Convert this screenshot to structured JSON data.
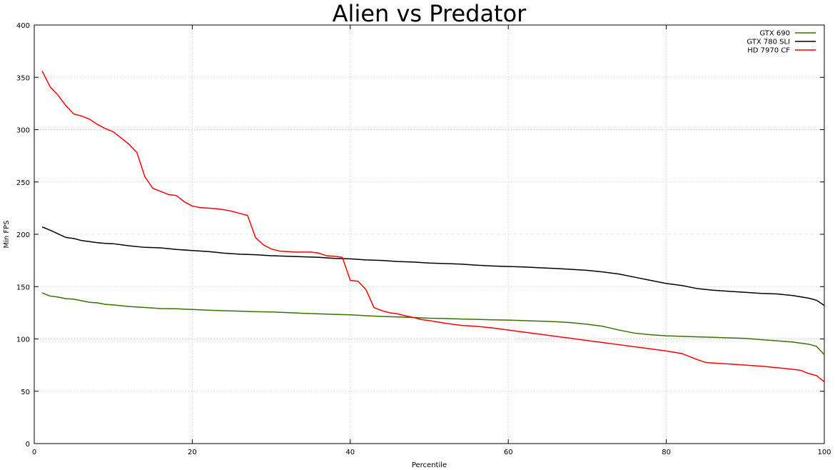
{
  "chart_data": {
    "type": "line",
    "title": "Alien vs Predator",
    "xlabel": "Percentile",
    "ylabel": "Min FPS",
    "xlim": [
      0,
      100
    ],
    "ylim": [
      0,
      400
    ],
    "x_ticks": [
      0,
      20,
      40,
      60,
      80,
      100
    ],
    "y_ticks": [
      0,
      50,
      100,
      150,
      200,
      250,
      300,
      350,
      400
    ],
    "grid": true,
    "legend_position": "top-right",
    "series": [
      {
        "name": "GTX 690",
        "color": "#3a7000",
        "points": [
          [
            1,
            144
          ],
          [
            2,
            141
          ],
          [
            3,
            140
          ],
          [
            4,
            138.5
          ],
          [
            5,
            138
          ],
          [
            6,
            136.5
          ],
          [
            7,
            135
          ],
          [
            8,
            134.5
          ],
          [
            9,
            133
          ],
          [
            10,
            132.5
          ],
          [
            12,
            131
          ],
          [
            14,
            130
          ],
          [
            16,
            129
          ],
          [
            18,
            128.8
          ],
          [
            20,
            128.2
          ],
          [
            22,
            127.5
          ],
          [
            24,
            127
          ],
          [
            26,
            126.5
          ],
          [
            28,
            126
          ],
          [
            30,
            125.8
          ],
          [
            32,
            125.2
          ],
          [
            34,
            124.5
          ],
          [
            36,
            124
          ],
          [
            38,
            123.5
          ],
          [
            40,
            123
          ],
          [
            42,
            122.2
          ],
          [
            44,
            121.5
          ],
          [
            46,
            121
          ],
          [
            48,
            120.5
          ],
          [
            50,
            119.8
          ],
          [
            52,
            119.5
          ],
          [
            54,
            119
          ],
          [
            56,
            118.7
          ],
          [
            58,
            118.3
          ],
          [
            60,
            118
          ],
          [
            62,
            117.5
          ],
          [
            64,
            117
          ],
          [
            66,
            116.5
          ],
          [
            68,
            115.5
          ],
          [
            70,
            114
          ],
          [
            72,
            112
          ],
          [
            74,
            108.5
          ],
          [
            76,
            105.5
          ],
          [
            78,
            104
          ],
          [
            80,
            103
          ],
          [
            82,
            102.5
          ],
          [
            84,
            102
          ],
          [
            86,
            101.5
          ],
          [
            88,
            101
          ],
          [
            90,
            100.5
          ],
          [
            92,
            99.3
          ],
          [
            94,
            98.2
          ],
          [
            96,
            97
          ],
          [
            98,
            95
          ],
          [
            99,
            93
          ],
          [
            100,
            85
          ]
        ]
      },
      {
        "name": "GTX 780 SLI",
        "color": "#000000",
        "points": [
          [
            1,
            207
          ],
          [
            2,
            204
          ],
          [
            3,
            200.5
          ],
          [
            4,
            197
          ],
          [
            5,
            196
          ],
          [
            6,
            194
          ],
          [
            7,
            193
          ],
          [
            8,
            192
          ],
          [
            9,
            191.3
          ],
          [
            10,
            191
          ],
          [
            12,
            189
          ],
          [
            14,
            187.5
          ],
          [
            16,
            187
          ],
          [
            18,
            185.5
          ],
          [
            20,
            184.5
          ],
          [
            22,
            183.5
          ],
          [
            24,
            182
          ],
          [
            26,
            181
          ],
          [
            28,
            180.5
          ],
          [
            30,
            179.5
          ],
          [
            32,
            179
          ],
          [
            34,
            178.5
          ],
          [
            36,
            178
          ],
          [
            38,
            177
          ],
          [
            40,
            176.5
          ],
          [
            42,
            175.5
          ],
          [
            44,
            175
          ],
          [
            46,
            174
          ],
          [
            48,
            173.5
          ],
          [
            50,
            172.5
          ],
          [
            52,
            172
          ],
          [
            54,
            171.5
          ],
          [
            56,
            170.5
          ],
          [
            58,
            169.7
          ],
          [
            60,
            169.2
          ],
          [
            62,
            168.8
          ],
          [
            64,
            168
          ],
          [
            66,
            167.3
          ],
          [
            68,
            166.5
          ],
          [
            70,
            165.5
          ],
          [
            72,
            164
          ],
          [
            74,
            162
          ],
          [
            76,
            159
          ],
          [
            78,
            156
          ],
          [
            80,
            153
          ],
          [
            82,
            151
          ],
          [
            84,
            148
          ],
          [
            86,
            146.5
          ],
          [
            88,
            145.5
          ],
          [
            90,
            144.5
          ],
          [
            92,
            143.5
          ],
          [
            94,
            143
          ],
          [
            96,
            141.5
          ],
          [
            98,
            139
          ],
          [
            99,
            137
          ],
          [
            100,
            132
          ]
        ]
      },
      {
        "name": "HD 7970 CF",
        "color": "#ff0000",
        "points": [
          [
            1,
            356
          ],
          [
            2,
            341
          ],
          [
            3,
            333
          ],
          [
            4,
            323
          ],
          [
            5,
            315
          ],
          [
            6,
            313
          ],
          [
            7,
            310
          ],
          [
            8,
            305
          ],
          [
            9,
            301
          ],
          [
            10,
            298
          ],
          [
            11,
            292
          ],
          [
            12,
            286
          ],
          [
            13,
            278
          ],
          [
            14,
            255
          ],
          [
            15,
            244
          ],
          [
            16,
            241
          ],
          [
            17,
            238
          ],
          [
            18,
            237
          ],
          [
            19,
            231
          ],
          [
            20,
            227
          ],
          [
            21,
            225.5
          ],
          [
            22,
            225
          ],
          [
            23,
            224.5
          ],
          [
            24,
            223.5
          ],
          [
            25,
            222
          ],
          [
            26,
            220
          ],
          [
            27,
            218
          ],
          [
            28,
            197
          ],
          [
            29,
            190
          ],
          [
            30,
            186
          ],
          [
            31,
            184
          ],
          [
            32,
            183.5
          ],
          [
            33,
            183
          ],
          [
            34,
            183
          ],
          [
            35,
            183
          ],
          [
            36,
            182
          ],
          [
            37,
            179.5
          ],
          [
            38,
            179
          ],
          [
            39,
            178
          ],
          [
            40,
            156
          ],
          [
            41,
            155
          ],
          [
            42,
            147
          ],
          [
            43,
            130
          ],
          [
            44,
            127
          ],
          [
            45,
            125
          ],
          [
            46,
            124
          ],
          [
            47,
            122
          ],
          [
            48,
            120.5
          ],
          [
            49,
            118.5
          ],
          [
            50,
            117.5
          ],
          [
            52,
            115
          ],
          [
            54,
            113
          ],
          [
            56,
            112
          ],
          [
            58,
            110.5
          ],
          [
            60,
            108.5
          ],
          [
            62,
            106.5
          ],
          [
            64,
            104.5
          ],
          [
            66,
            102.5
          ],
          [
            68,
            100.5
          ],
          [
            70,
            98.5
          ],
          [
            72,
            96.5
          ],
          [
            74,
            94.5
          ],
          [
            76,
            92.5
          ],
          [
            78,
            90.5
          ],
          [
            80,
            88.5
          ],
          [
            82,
            86
          ],
          [
            84,
            80
          ],
          [
            85,
            77.5
          ],
          [
            86,
            77
          ],
          [
            88,
            76
          ],
          [
            90,
            75
          ],
          [
            92,
            74
          ],
          [
            94,
            72.5
          ],
          [
            96,
            71
          ],
          [
            97,
            70
          ],
          [
            98,
            67
          ],
          [
            99,
            65
          ],
          [
            100,
            59
          ]
        ]
      }
    ]
  }
}
